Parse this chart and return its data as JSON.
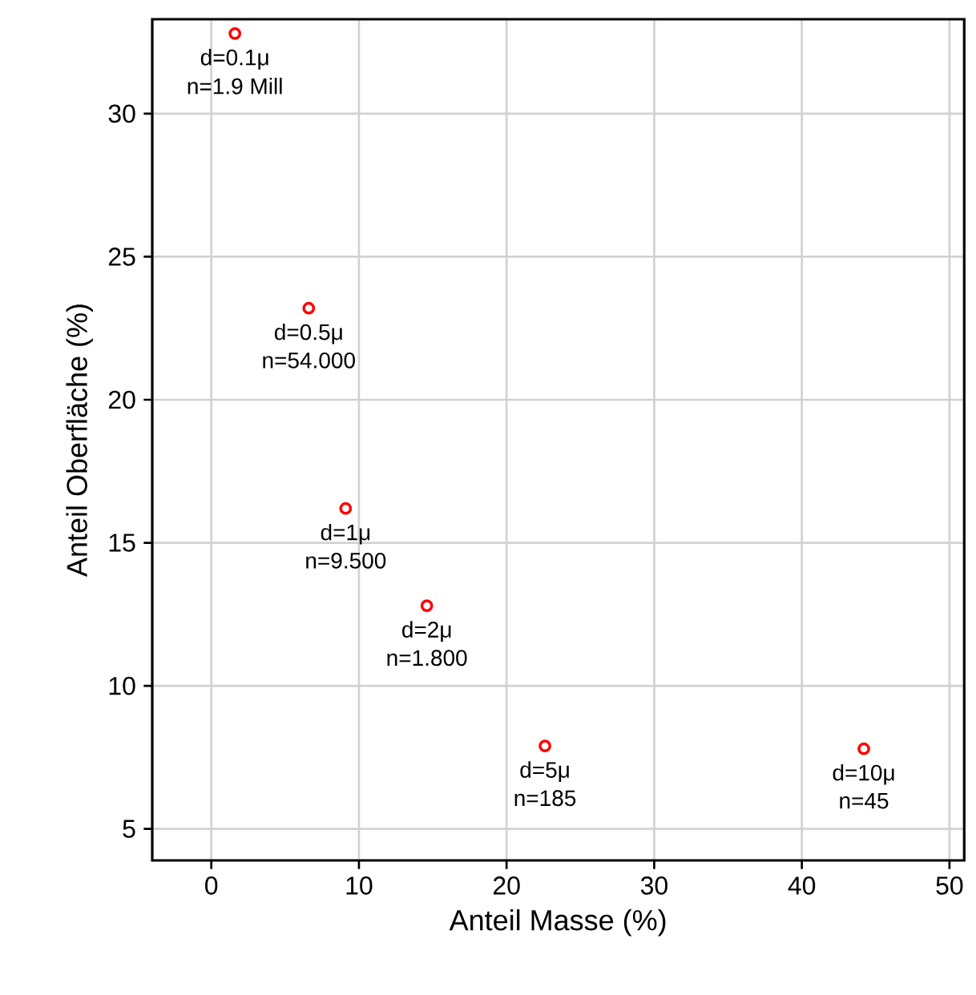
{
  "chart_data": {
    "type": "scatter",
    "xlabel": "Anteil Masse (%)",
    "ylabel": "Anteil Oberfläche (%)",
    "series": [
      {
        "color": "#ff0000",
        "x": [
          1.6,
          6.6,
          9.1,
          14.6,
          22.6,
          44.2
        ],
        "values": [
          32.8,
          23.2,
          16.2,
          12.8,
          7.9,
          7.8
        ]
      }
    ],
    "xlim": [
      -4,
      51
    ],
    "ylim": [
      3.9,
      33.3
    ],
    "xticks": [
      0,
      10,
      20,
      30,
      40,
      50
    ],
    "yticks": [
      5,
      10,
      15,
      20,
      25,
      30
    ],
    "grid": true,
    "marker": "circle",
    "annotations": [
      {
        "text": "d=0.1μ",
        "x": 1.6,
        "y": 32.8
      },
      {
        "text": "n=1.9 Mill",
        "x": 1.6,
        "y": 32.8
      },
      {
        "text": "d=0.5μ",
        "x": 6.6,
        "y": 23.2
      },
      {
        "text": "n=54.000",
        "x": 6.6,
        "y": 23.2
      },
      {
        "text": "d=1μ",
        "x": 9.1,
        "y": 16.2
      },
      {
        "text": "n=9.500",
        "x": 9.1,
        "y": 16.2
      },
      {
        "text": "d=2μ",
        "x": 14.6,
        "y": 12.8
      },
      {
        "text": "n=1.800",
        "x": 14.6,
        "y": 12.8
      },
      {
        "text": "d=5μ",
        "x": 22.6,
        "y": 7.9
      },
      {
        "text": "n=185",
        "x": 22.6,
        "y": 7.9
      },
      {
        "text": "d=10μ",
        "x": 44.2,
        "y": 7.8
      },
      {
        "text": "n=45",
        "x": 44.2,
        "y": 7.8
      }
    ]
  }
}
